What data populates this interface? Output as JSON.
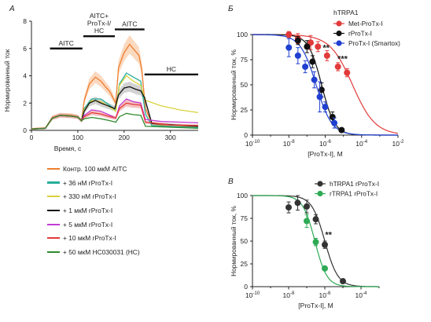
{
  "panel_labels": {
    "a": "А",
    "b": "Б",
    "c": "В"
  },
  "chart_data": [
    {
      "type": "line",
      "panel": "А",
      "ylabel": "Нормированный ток",
      "xlabel": "Время, с",
      "xlim": [
        0,
        360
      ],
      "ylim": [
        0,
        8
      ],
      "xticks": [
        0,
        100,
        200,
        300
      ],
      "yticks": [
        0,
        2,
        4,
        6,
        8
      ],
      "bars": [
        {
          "label": "AITC",
          "x": [
            40,
            110
          ],
          "y": 6.0
        },
        {
          "label": "AITC+\nProTx-I/\nHC",
          "x": [
            112,
            180
          ],
          "y": 6.9
        },
        {
          "label": "AITC",
          "x": [
            180,
            244
          ],
          "y": 7.4
        },
        {
          "label": "HC",
          "x": [
            244,
            360
          ],
          "y": 4.1
        }
      ],
      "series": [
        {
          "name": "Контр. 100 мкМ AITC",
          "color": "#ef7d2e",
          "band": "#f9c9a4",
          "values": [
            [
              0,
              0.12
            ],
            [
              30,
              0.18
            ],
            [
              45,
              0.95
            ],
            [
              62,
              1.12
            ],
            [
              85,
              1.1
            ],
            [
              100,
              1.0
            ],
            [
              108,
              0.7
            ],
            [
              114,
              2.2
            ],
            [
              125,
              3.4
            ],
            [
              138,
              3.9
            ],
            [
              150,
              3.6
            ],
            [
              160,
              3.2
            ],
            [
              170,
              2.8
            ],
            [
              176,
              2.4
            ],
            [
              182,
              2.0
            ],
            [
              188,
              4.6
            ],
            [
              200,
              5.7
            ],
            [
              212,
              6.3
            ],
            [
              222,
              5.9
            ],
            [
              232,
              5.5
            ],
            [
              238,
              4.5
            ],
            [
              246,
              1.6
            ],
            [
              260,
              0.5
            ],
            [
              300,
              0.3
            ],
            [
              360,
              0.28
            ]
          ]
        },
        {
          "name": "+ 36 нМ rProTx-I",
          "color": "#27ae9a",
          "values": [
            [
              0,
              0.1
            ],
            [
              30,
              0.15
            ],
            [
              45,
              0.9
            ],
            [
              62,
              1.1
            ],
            [
              85,
              1.05
            ],
            [
              100,
              0.98
            ],
            [
              108,
              0.7
            ],
            [
              114,
              1.6
            ],
            [
              130,
              2.3
            ],
            [
              150,
              2.3
            ],
            [
              170,
              1.8
            ],
            [
              182,
              1.5
            ],
            [
              190,
              3.4
            ],
            [
              205,
              4.2
            ],
            [
              220,
              3.9
            ],
            [
              236,
              3.6
            ],
            [
              246,
              1.2
            ],
            [
              260,
              0.35
            ],
            [
              360,
              0.2
            ]
          ]
        },
        {
          "name": "+ 330 нМ rProTx-I",
          "color": "#d9d23c",
          "values": [
            [
              0,
              0.1
            ],
            [
              30,
              0.15
            ],
            [
              45,
              0.9
            ],
            [
              62,
              1.1
            ],
            [
              85,
              1.05
            ],
            [
              100,
              0.98
            ],
            [
              108,
              0.7
            ],
            [
              114,
              1.5
            ],
            [
              130,
              2.2
            ],
            [
              150,
              2.1
            ],
            [
              170,
              1.7
            ],
            [
              182,
              1.4
            ],
            [
              190,
              3.3
            ],
            [
              205,
              4.0
            ],
            [
              220,
              3.6
            ],
            [
              236,
              3.3
            ],
            [
              246,
              2.2
            ],
            [
              280,
              1.8
            ],
            [
              320,
              1.5
            ],
            [
              360,
              1.3
            ]
          ]
        },
        {
          "name": "+ 1 мкМ rProTx-I",
          "color": "#111111",
          "band": "#bfbfbf",
          "values": [
            [
              0,
              0.1
            ],
            [
              30,
              0.15
            ],
            [
              45,
              0.9
            ],
            [
              62,
              1.1
            ],
            [
              85,
              1.05
            ],
            [
              100,
              0.98
            ],
            [
              108,
              0.7
            ],
            [
              114,
              1.4
            ],
            [
              125,
              2.0
            ],
            [
              138,
              2.2
            ],
            [
              150,
              2.0
            ],
            [
              165,
              1.8
            ],
            [
              180,
              1.6
            ],
            [
              188,
              2.6
            ],
            [
              200,
              3.1
            ],
            [
              212,
              3.2
            ],
            [
              226,
              3.0
            ],
            [
              236,
              2.9
            ],
            [
              244,
              2.4
            ],
            [
              260,
              0.5
            ],
            [
              360,
              0.3
            ]
          ]
        },
        {
          "name": "+ 5 мкМ rProTx-I",
          "color": "#c23bd4",
          "values": [
            [
              0,
              0.1
            ],
            [
              30,
              0.15
            ],
            [
              45,
              0.9
            ],
            [
              62,
              1.1
            ],
            [
              85,
              1.05
            ],
            [
              100,
              0.98
            ],
            [
              108,
              0.7
            ],
            [
              114,
              1.1
            ],
            [
              130,
              1.5
            ],
            [
              150,
              1.4
            ],
            [
              170,
              1.1
            ],
            [
              182,
              0.9
            ],
            [
              190,
              1.8
            ],
            [
              205,
              2.3
            ],
            [
              220,
              2.1
            ],
            [
              236,
              2.0
            ],
            [
              246,
              0.8
            ],
            [
              280,
              0.65
            ],
            [
              360,
              0.55
            ]
          ]
        },
        {
          "name": "+ 10 мкМ rProTx-I",
          "color": "#e23a3a",
          "band": "#f2a6a6",
          "values": [
            [
              0,
              0.1
            ],
            [
              30,
              0.15
            ],
            [
              45,
              0.9
            ],
            [
              62,
              1.1
            ],
            [
              85,
              1.05
            ],
            [
              100,
              0.98
            ],
            [
              108,
              0.7
            ],
            [
              114,
              1.0
            ],
            [
              130,
              1.3
            ],
            [
              150,
              1.2
            ],
            [
              170,
              1.0
            ],
            [
              182,
              0.9
            ],
            [
              190,
              1.6
            ],
            [
              205,
              2.0
            ],
            [
              220,
              1.9
            ],
            [
              236,
              1.85
            ],
            [
              246,
              0.6
            ],
            [
              300,
              0.4
            ],
            [
              360,
              0.35
            ]
          ]
        },
        {
          "name": "+ 50 мкМ HC030031 (HC)",
          "color": "#2e8b2e",
          "values": [
            [
              0,
              0.1
            ],
            [
              30,
              0.15
            ],
            [
              45,
              0.9
            ],
            [
              62,
              1.1
            ],
            [
              85,
              1.05
            ],
            [
              100,
              0.98
            ],
            [
              108,
              0.7
            ],
            [
              114,
              0.85
            ],
            [
              130,
              0.95
            ],
            [
              150,
              0.85
            ],
            [
              170,
              0.7
            ],
            [
              182,
              0.6
            ],
            [
              190,
              1.0
            ],
            [
              205,
              1.25
            ],
            [
              220,
              1.15
            ],
            [
              236,
              1.1
            ],
            [
              246,
              0.3
            ],
            [
              360,
              0.15
            ]
          ]
        }
      ]
    },
    {
      "type": "scatter",
      "panel": "Б",
      "ylabel": "Нормированный ток, %",
      "xlabel": "[ProTx-I], M",
      "xscale": "log",
      "xlim": [
        -10,
        -2
      ],
      "ylim": [
        0,
        100
      ],
      "yticks": [
        0,
        25,
        50,
        75,
        100
      ],
      "xticks": [
        -10,
        -8,
        -6,
        -4,
        -2
      ],
      "legend_title": "hTRPA1",
      "legend_position": "top-right",
      "series": [
        {
          "name": "Met-ProTx-I",
          "color": "#e23a3a",
          "points": [
            [
              -8,
              100,
              3
            ],
            [
              -7.5,
              96,
              5
            ],
            [
              -6.8,
              92,
              7
            ],
            [
              -6.4,
              88,
              5
            ],
            [
              -5.9,
              79,
              5
            ],
            [
              -5.3,
              68,
              4
            ],
            [
              -4.8,
              62,
              4
            ]
          ],
          "fit": {
            "ic50": -4.5,
            "hill": 0.7
          }
        },
        {
          "name": "rProTx-I",
          "color": "#111111",
          "points": [
            [
              -7.5,
              94,
              4
            ],
            [
              -7,
              88,
              6
            ],
            [
              -6.7,
              73,
              6
            ],
            [
              -6.2,
              45,
              7
            ],
            [
              -5.6,
              18,
              5
            ],
            [
              -5.1,
              5,
              2
            ]
          ],
          "fit": {
            "ic50": -6.2,
            "hill": 1.2
          }
        },
        {
          "name": "ProTx-I (Smartox)",
          "color": "#1f3fd1",
          "points": [
            [
              -8,
              87,
              9
            ],
            [
              -7.5,
              79,
              8
            ],
            [
              -7.1,
              68,
              6
            ],
            [
              -6.6,
              55,
              8
            ],
            [
              -6.3,
              38,
              15
            ],
            [
              -6,
              28,
              5
            ],
            [
              -5.5,
              12,
              5
            ]
          ],
          "fit": {
            "ic50": -6.5,
            "hill": 1.0
          }
        }
      ],
      "annotations": [
        {
          "text": "**",
          "x": -5.95,
          "y": 84
        },
        {
          "text": "***",
          "x": -5.05,
          "y": 73
        }
      ]
    },
    {
      "type": "scatter",
      "panel": "В",
      "ylabel": "Нормированный ток, %",
      "xlabel": "[ProTx-I], M",
      "xscale": "log",
      "xlim": [
        -10,
        -3
      ],
      "ylim": [
        0,
        100
      ],
      "yticks": [
        0,
        25,
        50,
        75,
        100
      ],
      "xticks": [
        -10,
        -8,
        -6,
        -4
      ],
      "legend_position": "top-right",
      "series": [
        {
          "name": "hTRPA1 rProTx-I",
          "color": "#333333",
          "points": [
            [
              -8,
              87,
              6
            ],
            [
              -7.5,
              92,
              8
            ],
            [
              -7,
              88,
              7
            ],
            [
              -6.5,
              74,
              5
            ],
            [
              -6,
              46,
              4
            ],
            [
              -5,
              6,
              2
            ]
          ],
          "fit": {
            "ic50": -6.0,
            "hill": 1.2
          }
        },
        {
          "name": "rTRPA1 rProTx-I",
          "color": "#2eaa55",
          "points": [
            [
              -7,
              72,
              7
            ],
            [
              -6.5,
              49,
              4
            ],
            [
              -6,
              20,
              2
            ]
          ],
          "fit": {
            "ic50": -6.55,
            "hill": 1.3
          }
        }
      ],
      "annotations": [
        {
          "text": "**",
          "x": -5.8,
          "y": 54
        }
      ]
    }
  ]
}
